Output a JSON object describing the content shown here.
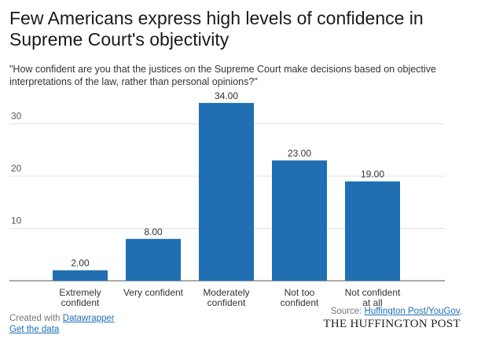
{
  "header": {
    "title": "Few Americans express high levels of confidence in Supreme Court's objectivity",
    "subtitle": "\"How confident are you that the justices on the Supreme Court make decisions based on objective interpretations of the law, rather than personal opinions?\""
  },
  "chart_data": {
    "type": "bar",
    "categories": [
      [
        "Extremely",
        "confident"
      ],
      [
        "Very confident"
      ],
      [
        "Moderately",
        "confident"
      ],
      [
        "Not too",
        "confident"
      ],
      [
        "Not confident",
        "at all"
      ]
    ],
    "values": [
      2,
      8,
      34,
      23,
      19
    ],
    "value_labels": [
      "2.00",
      "8.00",
      "34.00",
      "23.00",
      "19.00"
    ],
    "yticks": [
      10,
      20,
      30
    ],
    "ylim": [
      0,
      36
    ],
    "bar_color": "#1f6fb2",
    "grid": true
  },
  "footer": {
    "created_prefix": "Created with ",
    "created_link": "Datawrapper",
    "data_link": "Get the data",
    "source_prefix": "Source: ",
    "source_link": "Huffington Post/YouGov",
    "source_suffix": ",",
    "brand": "THE HUFFINGTON POST"
  }
}
